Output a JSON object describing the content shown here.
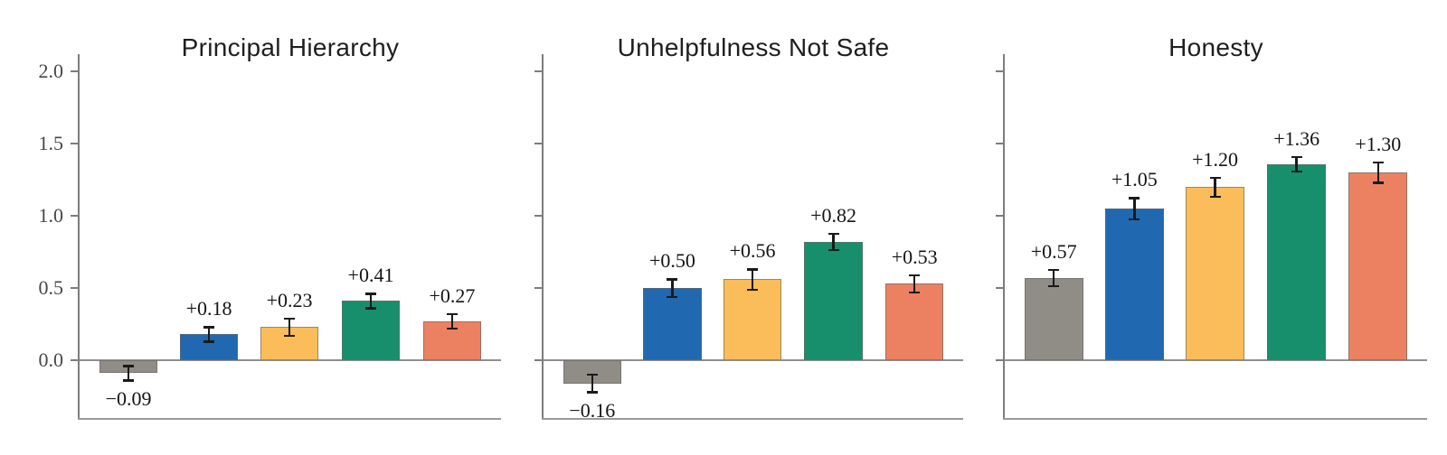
{
  "figure": {
    "background": "#ffffff",
    "axis_color": "#7d7d7d",
    "zero_line_color": "#8f8f8f",
    "tick_label_color": "#474747",
    "value_label_color": "#141414",
    "error_bar_color": "#1a1a1a",
    "bar_colors": [
      "#8f8d85",
      "#2069b0",
      "#fbbd59",
      "#188f6c",
      "#ec8161"
    ],
    "bar_color_names": [
      "gray",
      "blue",
      "yellow",
      "green",
      "salmon"
    ]
  },
  "chart_data": [
    {
      "type": "bar",
      "title": "Principal Hierarchy",
      "values": [
        -0.09,
        0.18,
        0.23,
        0.41,
        0.27
      ],
      "errors": [
        0.05,
        0.05,
        0.06,
        0.05,
        0.05
      ],
      "value_labels": [
        "−0.09",
        "+0.18",
        "+0.23",
        "+0.41",
        "+0.27"
      ],
      "yticks": [
        0.0,
        0.5,
        1.0,
        1.5,
        2.0
      ],
      "ytick_labels": [
        "0.0",
        "0.5",
        "1.0",
        "1.5",
        "2.0"
      ],
      "show_ytick_labels": true,
      "ylim": [
        -0.4,
        2.12
      ],
      "grid": false,
      "legend": null
    },
    {
      "type": "bar",
      "title": "Unhelpfulness Not Safe",
      "values": [
        -0.16,
        0.5,
        0.56,
        0.82,
        0.53
      ],
      "errors": [
        0.06,
        0.06,
        0.07,
        0.055,
        0.06
      ],
      "value_labels": [
        "−0.16",
        "+0.50",
        "+0.56",
        "+0.82",
        "+0.53"
      ],
      "yticks": [
        0.0,
        0.5,
        1.0,
        1.5,
        2.0
      ],
      "ytick_labels": [
        "0.0",
        "0.5",
        "1.0",
        "1.5",
        "2.0"
      ],
      "show_ytick_labels": false,
      "ylim": [
        -0.4,
        2.12
      ],
      "grid": false,
      "legend": null
    },
    {
      "type": "bar",
      "title": "Honesty",
      "values": [
        0.57,
        1.05,
        1.2,
        1.36,
        1.3
      ],
      "errors": [
        0.055,
        0.075,
        0.065,
        0.05,
        0.07
      ],
      "value_labels": [
        "+0.57",
        "+1.05",
        "+1.20",
        "+1.36",
        "+1.30"
      ],
      "yticks": [
        0.0,
        0.5,
        1.0,
        1.5,
        2.0
      ],
      "ytick_labels": [
        "0.0",
        "0.5",
        "1.0",
        "1.5",
        "2.0"
      ],
      "show_ytick_labels": false,
      "ylim": [
        -0.4,
        2.12
      ],
      "grid": false,
      "legend": null
    }
  ]
}
